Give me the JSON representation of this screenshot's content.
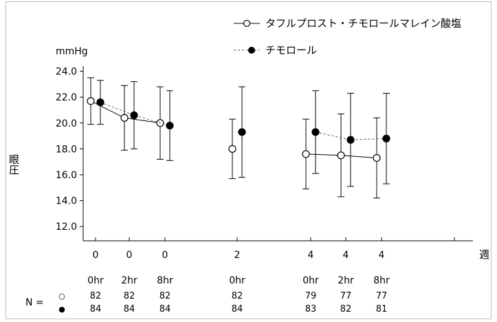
{
  "chart_data": {
    "type": "line",
    "ylabel": "眼圧",
    "yunit": "mmHg",
    "xunit": "週",
    "ylim": [
      11.0,
      24.5
    ],
    "yticks": [
      "24.0",
      "22.0",
      "20.0",
      "18.0",
      "16.0",
      "14.0",
      "12.0"
    ],
    "ytick_values": [
      24,
      22,
      20,
      18,
      16,
      14,
      12
    ],
    "x_week_labels": [
      "0",
      "0",
      "0",
      "2",
      "4",
      "4",
      "4"
    ],
    "x_time_labels": [
      "0hr",
      "2hr",
      "8hr",
      "0hr",
      "0hr",
      "2hr",
      "8hr"
    ],
    "legend_position": "top-right",
    "series": [
      {
        "name": "タフルプロスト・チモロールマレイン酸塩",
        "marker": "open-circle",
        "line": "solid",
        "values": [
          21.7,
          20.4,
          20.0,
          18.0,
          17.6,
          17.5,
          17.3
        ],
        "error_upper": [
          23.5,
          22.9,
          22.8,
          20.3,
          20.3,
          20.7,
          20.4
        ],
        "error_lower": [
          19.9,
          17.9,
          17.2,
          15.7,
          14.9,
          14.3,
          14.2
        ],
        "segments": [
          [
            0,
            2
          ],
          [
            4,
            6
          ]
        ]
      },
      {
        "name": "チモロール",
        "marker": "filled-circle",
        "line": "dashed",
        "values": [
          21.6,
          20.6,
          19.8,
          19.3,
          19.3,
          18.7,
          18.8
        ],
        "error_upper": [
          23.3,
          23.2,
          22.5,
          22.8,
          22.5,
          22.3,
          22.3
        ],
        "error_lower": [
          19.9,
          18.0,
          17.1,
          15.8,
          16.1,
          15.1,
          15.3
        ],
        "segments": [
          [
            0,
            2
          ],
          [
            4,
            6
          ]
        ]
      }
    ],
    "n_label": "N =",
    "n_rows": [
      {
        "marker": "○",
        "values": [
          "82",
          "82",
          "82",
          "82",
          "79",
          "77",
          "77"
        ]
      },
      {
        "marker": "●",
        "values": [
          "84",
          "84",
          "84",
          "84",
          "83",
          "82",
          "81"
        ]
      }
    ]
  }
}
